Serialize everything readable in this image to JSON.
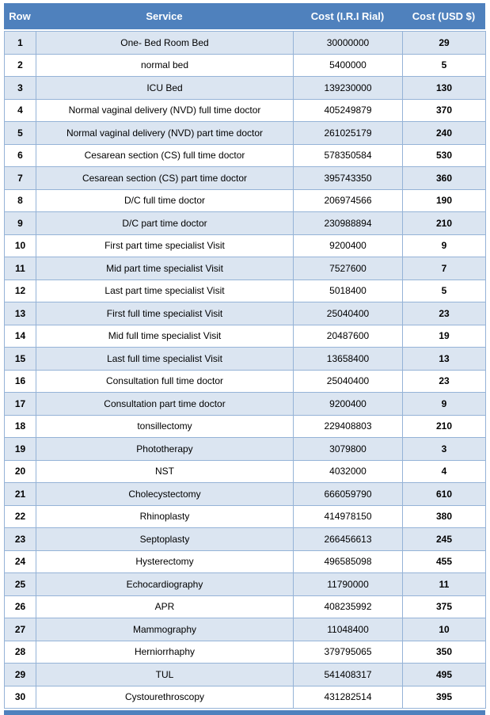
{
  "table": {
    "columns": [
      "Row",
      "Service",
      "Cost (I.R.I Rial)",
      "Cost (USD $)"
    ],
    "rows": [
      [
        "1",
        "One- Bed Room Bed",
        "30000000",
        "29"
      ],
      [
        "2",
        "normal bed",
        "5400000",
        "5"
      ],
      [
        "3",
        "ICU Bed",
        "139230000",
        "130"
      ],
      [
        "4",
        "Normal vaginal delivery (NVD) full time doctor",
        "405249879",
        "370"
      ],
      [
        "5",
        "Normal vaginal delivery (NVD) part time doctor",
        "261025179",
        "240"
      ],
      [
        "6",
        "Cesarean section (CS) full time doctor",
        "578350584",
        "530"
      ],
      [
        "7",
        "Cesarean section (CS) part time doctor",
        "395743350",
        "360"
      ],
      [
        "8",
        "D/C  full time doctor",
        "206974566",
        "190"
      ],
      [
        "9",
        "D/C  part  time doctor",
        "230988894",
        "210"
      ],
      [
        "10",
        "First part  time specialist Visit",
        "9200400",
        "9"
      ],
      [
        "11",
        "Mid part  time  specialist Visit",
        "7527600",
        "7"
      ],
      [
        "12",
        "Last part  time specialist Visit",
        "5018400",
        "5"
      ],
      [
        "13",
        "First full  time specialist Visit",
        "25040400",
        "23"
      ],
      [
        "14",
        "Mid full  time  specialist Visit",
        "20487600",
        "19"
      ],
      [
        "15",
        "Last full  time specialist Visit",
        "13658400",
        "13"
      ],
      [
        "16",
        "Consultation full time doctor",
        "25040400",
        "23"
      ],
      [
        "17",
        "Consultation part  time doctor",
        "9200400",
        "9"
      ],
      [
        "18",
        "tonsillectomy",
        "229408803",
        "210"
      ],
      [
        "19",
        "Phototherapy",
        "3079800",
        "3"
      ],
      [
        "20",
        "NST",
        "4032000",
        "4"
      ],
      [
        "21",
        "Cholecystectomy",
        "666059790",
        "610"
      ],
      [
        "22",
        "Rhinoplasty",
        "414978150",
        "380"
      ],
      [
        "23",
        "Septoplasty",
        "266456613",
        "245"
      ],
      [
        "24",
        "Hysterectomy",
        "496585098",
        "455"
      ],
      [
        "25",
        "Echocardiography",
        "11790000",
        "11"
      ],
      [
        "26",
        "APR",
        "408235992",
        "375"
      ],
      [
        "27",
        "Mammography",
        "11048400",
        "10"
      ],
      [
        "28",
        "Herniorrhaphy",
        "379795065",
        "350"
      ],
      [
        "29",
        "TUL",
        "541408317",
        "495"
      ],
      [
        "30",
        "Cystourethroscopy",
        "431282514",
        "395"
      ]
    ]
  },
  "colors": {
    "header_background": "#4F81BD",
    "header_text": "#FFFFFF",
    "row_shaded": "#DBE5F1",
    "row_plain": "#FFFFFF",
    "cell_border": "#95B3D7",
    "body_text": "#000000"
  }
}
